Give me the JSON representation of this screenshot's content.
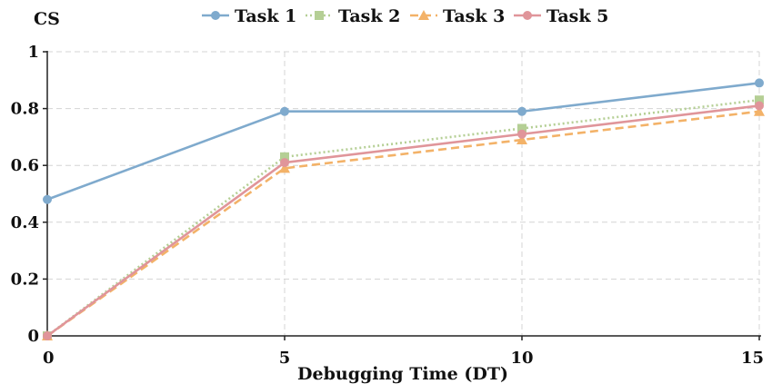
{
  "chart_data": {
    "type": "line",
    "title": "",
    "xlabel": "Debugging Time (DT)",
    "ylabel": "CS",
    "x": [
      0,
      5,
      10,
      15
    ],
    "x_ticks": [
      "0",
      "5",
      "10",
      "15"
    ],
    "y_ticks": [
      "0",
      "0.2",
      "0.4",
      "0.6",
      "0.8",
      "1"
    ],
    "xlim": [
      0,
      15
    ],
    "ylim": [
      0,
      1
    ],
    "grid": true,
    "legend_position": "top",
    "series": [
      {
        "name": "Task 1",
        "values": [
          0.48,
          0.79,
          0.79,
          0.89
        ],
        "color": "#7faacd",
        "marker": "circle",
        "line": "solid"
      },
      {
        "name": "Task 2",
        "values": [
          0.0,
          0.63,
          0.73,
          0.83
        ],
        "color": "#b5cf95",
        "marker": "square",
        "line": "dotted"
      },
      {
        "name": "Task 3",
        "values": [
          0.0,
          0.59,
          0.69,
          0.79
        ],
        "color": "#f3b268",
        "marker": "triangle",
        "line": "dashed"
      },
      {
        "name": "Task 5",
        "values": [
          0.0,
          0.61,
          0.71,
          0.81
        ],
        "color": "#e0959a",
        "marker": "circle",
        "line": "solid"
      }
    ]
  }
}
